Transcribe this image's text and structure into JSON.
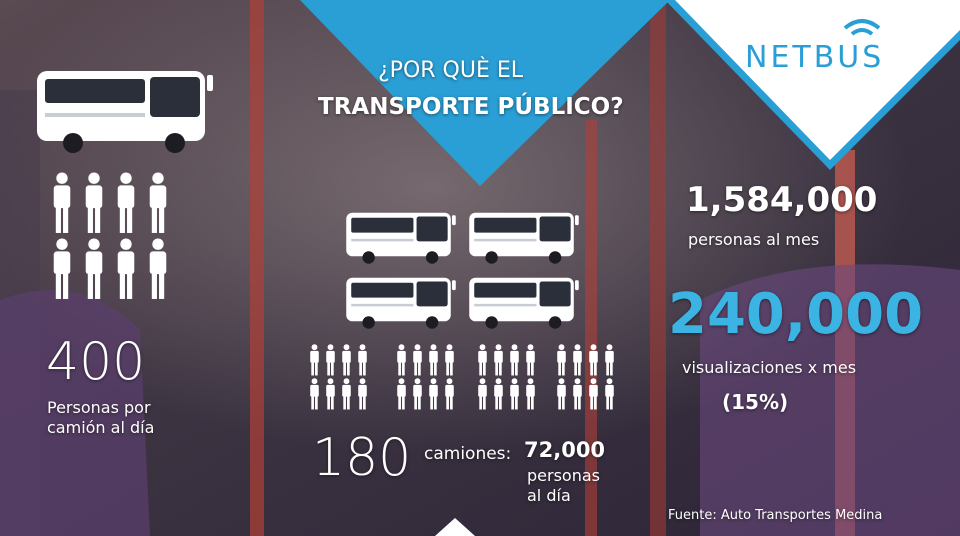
{
  "header": {
    "title_line1": "¿POR QUÈ EL",
    "title_line2": "TRANSPORTE PÚBLICO?",
    "logo": "NETBUS"
  },
  "left": {
    "number": "400",
    "caption_line1": "Personas por",
    "caption_line2": "camión al día"
  },
  "middle": {
    "number": "180",
    "unit": "camiones:",
    "result": "72,000",
    "result_line1": "personas",
    "result_line2": "al día"
  },
  "right": {
    "monthly": "1,584,000",
    "monthly_caption": "personas al mes",
    "views": "240,000",
    "views_caption": "visualizaciones x mes",
    "views_share": "(15%)"
  },
  "footer": {
    "source": "Fuente:  Auto Transportes Medina"
  }
}
